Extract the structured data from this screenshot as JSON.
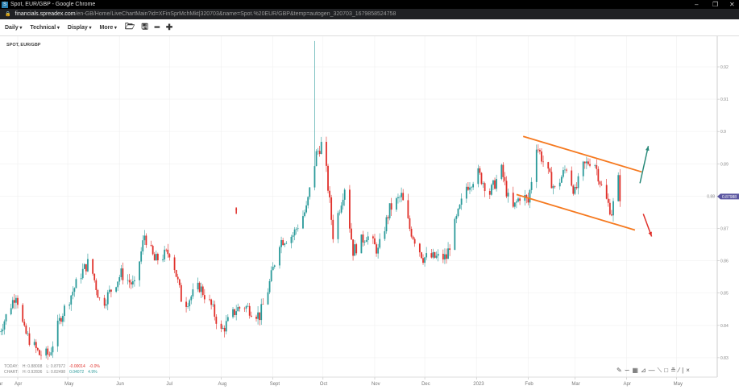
{
  "window": {
    "title": "Spot, EUR/GBP - Google Chrome",
    "url_host": "financials.spreadex.com",
    "url_path": "/en-GB/Home/LiveChartMain?id=XFinSprMchMkt|320703&name=Spot.%20EUR/GBP&temp=autogen_320703_1679858524758"
  },
  "toolbar": {
    "menus": [
      "Daily",
      "Technical",
      "Display",
      "More"
    ],
    "icons": [
      "open-folder-icon",
      "save-icon",
      "zoom-out-icon",
      "zoom-in-icon"
    ]
  },
  "symbol": "SPOT, EUR/GBP",
  "stats": {
    "today_label": "TODAY:",
    "today_high": "H: 0.88008",
    "today_low": "L: 0.87972",
    "today_change": "-0.00014",
    "today_pct": "-0.0%",
    "chart_label": "CHART:",
    "chart_high": "H: 0.92836",
    "chart_low": "L: 0.82498",
    "chart_change": "0.04072",
    "chart_pct": "4.9%"
  },
  "draw_tools": [
    "pencil-icon",
    "curve-icon",
    "grid-icon",
    "fan-icon",
    "horizontal-line-icon",
    "trend-line-icon",
    "rectangle-icon",
    "text-icon",
    "line-icon",
    "divider",
    "close-icon"
  ],
  "colors": {
    "up": "#2a9a9a",
    "down": "#e0302a",
    "channel": "#f5791f",
    "arrow_up": "#2a8a7a",
    "arrow_down": "#e0302a",
    "last_price_bg": "#5a55a0"
  },
  "chart_data": {
    "type": "candlestick",
    "interval": "Daily",
    "ylim": [
      0.825,
      0.932
    ],
    "yticks": [
      0.83,
      0.84,
      0.85,
      0.86,
      0.87,
      0.88,
      0.89,
      0.9,
      0.91,
      0.92
    ],
    "ytick_labels": [
      "0.83",
      "0.84",
      "0.85",
      "0.86",
      "0.87",
      "0.88",
      "0.89",
      "0.9",
      "0.91",
      "0.92"
    ],
    "xticks": [
      {
        "date": "2022-04-01",
        "label": "Apr"
      },
      {
        "date": "2022-05-01",
        "label": "May"
      },
      {
        "date": "2022-06-01",
        "label": "Jun"
      },
      {
        "date": "2022-07-01",
        "label": "Jul"
      },
      {
        "date": "2022-08-01",
        "label": "Aug"
      },
      {
        "date": "2022-09-01",
        "label": "Sept"
      },
      {
        "date": "2022-10-01",
        "label": "Oct"
      },
      {
        "date": "2022-11-01",
        "label": "Nov"
      },
      {
        "date": "2022-12-01",
        "label": "Dec"
      },
      {
        "date": "2023-01-01",
        "label": "2023"
      },
      {
        "date": "2023-02-01",
        "label": "Feb"
      },
      {
        "date": "2023-03-01",
        "label": "Mar"
      },
      {
        "date": "2023-04-01",
        "label": "Apr"
      },
      {
        "date": "2023-05-01",
        "label": "May"
      }
    ],
    "first_tick_partial": "ar",
    "last_price": "0.87988",
    "last_price_value": 0.87988,
    "close_path": [
      [
        "2022-03-21",
        0.838
      ],
      [
        "2022-03-31",
        0.85
      ],
      [
        "2022-04-05",
        0.838
      ],
      [
        "2022-04-14",
        0.831
      ],
      [
        "2022-04-20",
        0.831
      ],
      [
        "2022-04-27",
        0.843
      ],
      [
        "2022-05-09",
        0.856
      ],
      [
        "2022-05-14",
        0.86
      ],
      [
        "2022-05-21",
        0.846
      ],
      [
        "2022-06-02",
        0.856
      ],
      [
        "2022-06-10",
        0.852
      ],
      [
        "2022-06-16",
        0.868
      ],
      [
        "2022-06-22",
        0.86
      ],
      [
        "2022-07-02",
        0.863
      ],
      [
        "2022-07-09",
        0.846
      ],
      [
        "2022-07-19",
        0.852
      ],
      [
        "2022-07-26",
        0.846
      ],
      [
        "2022-08-01",
        0.838
      ],
      [
        "2022-08-10",
        0.845
      ],
      [
        "2022-08-15",
        0.846
      ],
      [
        "2022-08-24",
        0.843
      ],
      [
        "2022-08-29",
        0.851
      ],
      [
        "2022-09-05",
        0.866
      ],
      [
        "2022-09-13",
        0.868
      ],
      [
        "2022-09-21",
        0.876
      ],
      [
        "2022-09-27",
        0.893
      ],
      [
        "2022-10-01",
        0.897
      ],
      [
        "2022-10-05",
        0.878
      ],
      [
        "2022-10-07",
        0.868
      ],
      [
        "2022-10-14",
        0.883
      ],
      [
        "2022-10-19",
        0.863
      ],
      [
        "2022-10-27",
        0.868
      ],
      [
        "2022-11-03",
        0.863
      ],
      [
        "2022-11-10",
        0.876
      ],
      [
        "2022-11-17",
        0.88
      ],
      [
        "2022-11-22",
        0.87
      ],
      [
        "2022-11-30",
        0.861
      ],
      [
        "2022-12-07",
        0.861
      ],
      [
        "2022-12-14",
        0.861
      ],
      [
        "2022-12-19",
        0.871
      ],
      [
        "2022-12-26",
        0.883
      ],
      [
        "2023-01-02",
        0.887
      ],
      [
        "2023-01-09",
        0.881
      ],
      [
        "2023-01-16",
        0.888
      ],
      [
        "2023-01-22",
        0.875
      ],
      [
        "2023-01-28",
        0.881
      ],
      [
        "2023-02-01",
        0.878
      ],
      [
        "2023-02-06",
        0.896
      ],
      [
        "2023-02-12",
        0.888
      ],
      [
        "2023-02-17",
        0.882
      ],
      [
        "2023-02-24",
        0.889
      ],
      [
        "2023-03-01",
        0.881
      ],
      [
        "2023-03-06",
        0.889
      ],
      [
        "2023-03-12",
        0.892
      ],
      [
        "2023-03-18",
        0.881
      ],
      [
        "2023-03-23",
        0.875
      ],
      [
        "2023-03-27",
        0.885
      ],
      [
        "2023-03-28",
        0.88
      ]
    ],
    "spike": {
      "date": "2022-09-26",
      "high": 0.928
    },
    "channel": {
      "upper": [
        [
          "2023-01-29",
          0.8985
        ],
        [
          "2023-04-10",
          0.8875
        ]
      ],
      "lower": [
        [
          "2023-01-25",
          0.8805
        ],
        [
          "2023-04-06",
          0.8695
        ]
      ]
    },
    "arrows": [
      {
        "direction": "up",
        "color": "green",
        "from": [
          "2023-04-09",
          0.884
        ],
        "to": [
          "2023-04-14",
          0.8955
        ]
      },
      {
        "direction": "down",
        "color": "red",
        "from": [
          "2023-04-11",
          0.8745
        ],
        "to": [
          "2023-04-16",
          0.8675
        ]
      },
      {
        "direction": "up",
        "color": "red",
        "from": [
          "2022-08-10",
          0.8745
        ],
        "to": [
          "2022-08-10",
          0.8765
        ]
      }
    ]
  }
}
